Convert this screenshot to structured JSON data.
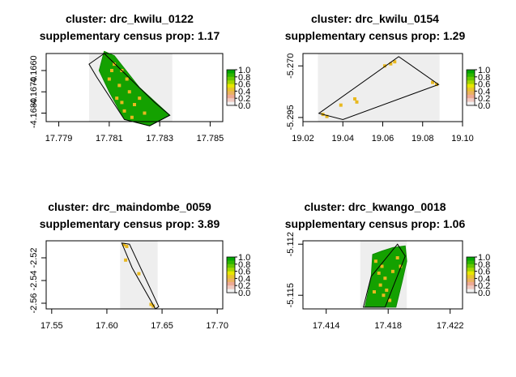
{
  "chart_data": [
    {
      "type": "raster-map",
      "title": "cluster: drc_kwilu_0122",
      "subtitle": "supplementary census prop: 1.17",
      "xlim": [
        17.7785,
        17.7855
      ],
      "ylim": [
        -4.1684,
        -4.1652
      ],
      "xticks": [
        "17.779",
        "17.781",
        "17.783",
        "17.785"
      ],
      "yticks": [
        "-4.1660",
        "-4.1670",
        "-4.1680"
      ],
      "shaded_x": [
        17.7802,
        17.7835
      ],
      "boundary": [
        [
          17.7808,
          -4.1652
        ],
        [
          17.7828,
          -4.1675
        ],
        [
          17.7834,
          -4.1681
        ],
        [
          17.7826,
          -4.1686
        ],
        [
          17.7816,
          -4.1683
        ],
        [
          17.7805,
          -4.1663
        ],
        [
          17.7802,
          -4.1657
        ]
      ],
      "raster_poly": [
        [
          17.7808,
          -4.1651
        ],
        [
          17.7812,
          -4.1653
        ],
        [
          17.7822,
          -4.1668
        ],
        [
          17.7834,
          -4.1681
        ],
        [
          17.7826,
          -4.1686
        ],
        [
          17.7816,
          -4.1683
        ],
        [
          17.781,
          -4.167
        ],
        [
          17.7806,
          -4.166
        ]
      ],
      "points": [
        [
          17.7812,
          -4.1657
        ],
        [
          17.7815,
          -4.166
        ],
        [
          17.781,
          -4.1664
        ],
        [
          17.7814,
          -4.1667
        ],
        [
          17.7818,
          -4.167
        ],
        [
          17.7813,
          -4.1673
        ],
        [
          17.782,
          -4.1676
        ],
        [
          17.7816,
          -4.1679
        ],
        [
          17.7824,
          -4.168
        ],
        [
          17.7811,
          -4.166
        ],
        [
          17.7817,
          -4.1664
        ],
        [
          17.7822,
          -4.1673
        ],
        [
          17.7815,
          -4.1675
        ],
        [
          17.7819,
          -4.1682
        ]
      ],
      "legend_ticks": [
        "1.0",
        "0.8",
        "0.6",
        "0.4",
        "0.2",
        "0.0"
      ]
    },
    {
      "type": "raster-map",
      "title": "cluster: drc_kwilu_0154",
      "subtitle": "supplementary census prop: 1.29",
      "xlim": [
        19.02,
        19.1
      ],
      "ylim": [
        -5.297,
        -5.264
      ],
      "xticks": [
        "19.02",
        "19.04",
        "19.06",
        "19.08",
        "19.10"
      ],
      "yticks": [
        "-5.270",
        "-5.295"
      ],
      "shaded_x": [
        19.0275,
        19.0885
      ],
      "boundary": [
        [
          19.028,
          -5.293
        ],
        [
          19.068,
          -5.2655
        ],
        [
          19.088,
          -5.279
        ],
        [
          19.04,
          -5.296
        ]
      ],
      "raster_poly": [],
      "points": [
        [
          19.061,
          -5.27
        ],
        [
          19.064,
          -5.269
        ],
        [
          19.066,
          -5.268
        ],
        [
          19.085,
          -5.278
        ],
        [
          19.087,
          -5.279
        ],
        [
          19.046,
          -5.286
        ],
        [
          19.047,
          -5.2875
        ],
        [
          19.039,
          -5.289
        ],
        [
          19.03,
          -5.2935
        ],
        [
          19.032,
          -5.2945
        ]
      ],
      "legend_ticks": [
        "1.0",
        "0.8",
        "0.6",
        "0.4",
        "0.2",
        "0.0"
      ]
    },
    {
      "type": "raster-map",
      "title": "cluster: drc_maindombe_0059",
      "subtitle": "supplementary census prop: 3.89",
      "xlim": [
        17.545,
        17.705
      ],
      "ylim": [
        -2.565,
        -2.505
      ],
      "xticks": [
        "17.55",
        "17.60",
        "17.65",
        "17.70"
      ],
      "yticks": [
        "-2.52",
        "-2.54",
        "-2.56"
      ],
      "shaded_x": [
        17.612,
        17.646
      ],
      "boundary": [
        [
          17.6135,
          -2.507
        ],
        [
          17.6205,
          -2.508
        ],
        [
          17.647,
          -2.563
        ],
        [
          17.644,
          -2.565
        ],
        [
          17.623,
          -2.529
        ]
      ],
      "raster_poly": [],
      "points": [
        [
          17.6155,
          -2.5085
        ],
        [
          17.618,
          -2.51
        ],
        [
          17.617,
          -2.522
        ],
        [
          17.629,
          -2.534
        ],
        [
          17.64,
          -2.561
        ],
        [
          17.642,
          -2.5625
        ]
      ],
      "legend_ticks": [
        "1.0",
        "0.8",
        "0.6",
        "0.4",
        "0.2",
        "0.0"
      ]
    },
    {
      "type": "raster-map",
      "title": "cluster: drc_kwango_0018",
      "subtitle": "supplementary census prop: 1.06",
      "xlim": [
        17.4125,
        17.4228
      ],
      "ylim": [
        -5.1158,
        -5.1118
      ],
      "xticks": [
        "17.414",
        "17.418",
        "17.422"
      ],
      "yticks": [
        "-5.112",
        "-5.115"
      ],
      "shaded_x": [
        17.4162,
        17.4192
      ],
      "boundary": [
        [
          17.4186,
          -5.112
        ],
        [
          17.4191,
          -5.1127
        ],
        [
          17.4178,
          -5.1157
        ],
        [
          17.4164,
          -5.1157
        ],
        [
          17.4169,
          -5.1139
        ]
      ],
      "raster_poly": [
        [
          17.417,
          -5.1126
        ],
        [
          17.4176,
          -5.1124
        ],
        [
          17.4183,
          -5.1122
        ],
        [
          17.4191,
          -5.1121
        ],
        [
          17.4192,
          -5.113
        ],
        [
          17.4189,
          -5.1142
        ],
        [
          17.4185,
          -5.1157
        ],
        [
          17.4165,
          -5.1157
        ],
        [
          17.4169,
          -5.114
        ]
      ],
      "points": [
        [
          17.4172,
          -5.113
        ],
        [
          17.4176,
          -5.1133
        ],
        [
          17.4174,
          -5.1137
        ],
        [
          17.4178,
          -5.114
        ],
        [
          17.4175,
          -5.1144
        ],
        [
          17.4179,
          -5.1147
        ],
        [
          17.4177,
          -5.115
        ],
        [
          17.4181,
          -5.1153
        ],
        [
          17.4186,
          -5.1128
        ],
        [
          17.4188,
          -5.1133
        ],
        [
          17.4183,
          -5.1136
        ],
        [
          17.4171,
          -5.1148
        ]
      ],
      "legend_ticks": [
        "1.0",
        "0.8",
        "0.6",
        "0.4",
        "0.2",
        "0.0"
      ]
    }
  ]
}
